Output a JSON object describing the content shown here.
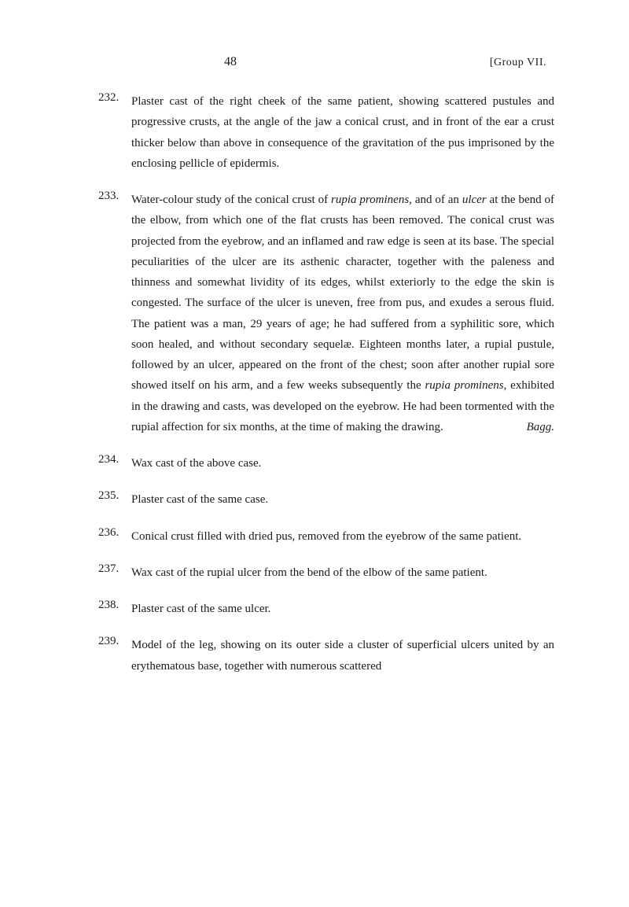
{
  "header": {
    "page_number": "48",
    "group_label": "[Group VII."
  },
  "entries": [
    {
      "number": "232.",
      "text": "Plaster cast of the right cheek of the same patient, showing scattered pustules and progressive crusts, at the angle of the jaw a conical crust, and in front of the ear a crust thicker below than above in consequence of the gravitation of the pus imprisoned by the enclosing pellicle of epidermis."
    },
    {
      "number": "233.",
      "prefix": "Water-colour study of the conical crust of ",
      "italic1": "rupia prominens",
      "mid1": ", and of an ",
      "italic2": "ulcer",
      "mid2": " at the bend of the elbow, from which one of the flat crusts has been removed. The conical crust was projected from the eyebrow, and an inflamed and raw edge is seen at its base. The special peculiarities of the ulcer are its asthenic character, together with the paleness and thinness and somewhat lividity of its edges, whilst exteriorly to the edge the skin is congested. The surface of the ulcer is uneven, free from pus, and exudes a serous fluid. The patient was a man, 29 years of age; he had suffered from a syphilitic sore, which soon healed, and without secondary sequelæ. Eighteen months later, a rupial pustule, followed by an ulcer, appeared on the front of the chest; soon after another rupial sore showed itself on his arm, and a few weeks subsequently the ",
      "italic3": "rupia prominens",
      "mid3": ", exhibited in the drawing and casts, was developed on the eyebrow. He had been tormented with the rupial affection for six months, at the time of making the drawing.",
      "attribution": "Bagg."
    },
    {
      "number": "234.",
      "text": "Wax cast of the above case."
    },
    {
      "number": "235.",
      "text": "Plaster cast of the same case."
    },
    {
      "number": "236.",
      "text": "Conical crust filled with dried pus, removed from the eyebrow of the same patient."
    },
    {
      "number": "237.",
      "text": "Wax cast of the rupial ulcer from the bend of the elbow of the same patient."
    },
    {
      "number": "238.",
      "text": "Plaster cast of the same ulcer."
    },
    {
      "number": "239.",
      "text": "Model of the leg, showing on its outer side a cluster of superficial ulcers united by an erythematous base, together with numerous scattered"
    }
  ]
}
